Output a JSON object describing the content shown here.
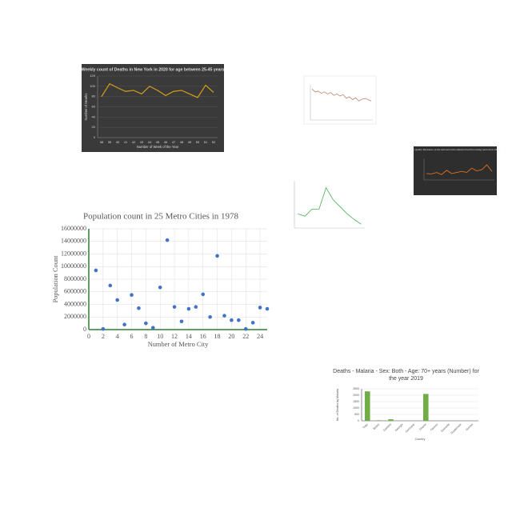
{
  "chart_data": [
    {
      "type": "line",
      "title": "Weekly count of Deaths in New York in 2020 for age between 25-45 years",
      "x_label": "Number of Week of the Year",
      "y_label": "Number of Deaths",
      "categories": [
        "38",
        "39",
        "40",
        "41",
        "42",
        "43",
        "44",
        "45",
        "46",
        "47",
        "48",
        "49",
        "50",
        "51",
        "52"
      ],
      "series": [
        {
          "name": "Deaths",
          "color": "#d4a017",
          "values": [
            80,
            105,
            97,
            90,
            92,
            85,
            100,
            92,
            82,
            90,
            92,
            85,
            78,
            102,
            88
          ]
        }
      ],
      "ylim": [
        0,
        120
      ],
      "yticks": [
        0,
        20,
        40,
        60,
        80,
        100,
        120
      ],
      "grid": true,
      "background": "#3a3a3a"
    },
    {
      "type": "line",
      "categories": [
        null,
        null,
        null,
        null,
        null,
        null,
        null,
        null,
        null,
        null,
        null,
        null,
        null,
        null,
        null,
        null,
        null,
        null,
        null,
        null
      ],
      "series": [
        {
          "name": "Values",
          "color": "#c0806a",
          "values": [
            88,
            80,
            82,
            76,
            80,
            74,
            78,
            70,
            74,
            68,
            72,
            62,
            66,
            58,
            63,
            54,
            59,
            61,
            58,
            54
          ]
        }
      ],
      "ylim": [
        0,
        100
      ],
      "grid": false,
      "background": "#ffffff"
    },
    {
      "type": "line",
      "title": "Air quality Measures on the national environmental health tracking network in 2004",
      "categories": [
        null,
        null,
        null,
        null,
        null,
        null,
        null,
        null,
        null,
        null,
        null,
        null,
        null,
        null
      ],
      "series": [
        {
          "name": "Measure",
          "color": "#e0701e",
          "values": [
            30,
            28,
            35,
            25,
            45,
            30,
            35,
            40,
            35,
            55,
            42,
            48,
            70,
            40
          ]
        }
      ],
      "ylim": [
        0,
        100
      ],
      "grid": false,
      "background": "#2e2e2e"
    },
    {
      "type": "line",
      "categories": [
        null,
        null,
        null,
        null,
        null,
        null,
        null,
        null,
        null,
        null
      ],
      "series": [
        {
          "name": "Cases",
          "color": "#4caf50",
          "values": [
            30,
            25,
            40,
            40,
            85,
            60,
            45,
            30,
            18,
            8
          ]
        }
      ],
      "ylim": [
        0,
        100
      ],
      "grid": false,
      "background": "#ffffff"
    },
    {
      "type": "scatter",
      "title": "Population count in 25 Metro Cities in 1978",
      "x_label": "Number of Metro City",
      "y_label": "Population Count",
      "x": [
        1,
        2,
        3,
        4,
        5,
        6,
        7,
        8,
        9,
        10,
        11,
        12,
        13,
        14,
        15,
        16,
        17,
        18,
        19,
        20,
        21,
        22,
        23,
        24,
        25
      ],
      "series": [
        {
          "name": "Population",
          "color": "#4472c4",
          "values": [
            9400000,
            100000,
            7000000,
            4700000,
            800000,
            5500000,
            3400000,
            1000000,
            300000,
            6700000,
            14200000,
            3600000,
            1300000,
            3300000,
            3600000,
            5600000,
            2000000,
            11700000,
            2200000,
            1500000,
            1500000,
            100000,
            1100000,
            3500000,
            3300000
          ]
        }
      ],
      "xlim": [
        0,
        25
      ],
      "xticks": [
        0,
        2,
        4,
        6,
        8,
        10,
        12,
        14,
        16,
        18,
        20,
        22,
        24
      ],
      "ylim": [
        0,
        16000000
      ],
      "yticks": [
        0,
        2000000,
        4000000,
        6000000,
        8000000,
        10000000,
        12000000,
        14000000,
        16000000
      ],
      "grid": true,
      "background": "#ffffff"
    },
    {
      "type": "bar",
      "title": "Deaths - Malaria - Sex: Both - Age: 70+ years (Number) for the year 2019",
      "x_label": "Country",
      "y_label": "No. of Deaths by Malaria",
      "categories": [
        "Togo",
        "Belize",
        "Gambia",
        "Georgia",
        "Germany",
        "Ghana",
        "Greece",
        "Grenada",
        "Guatemala",
        "Guinea"
      ],
      "series": [
        {
          "name": "Deaths",
          "color": "#70ad47",
          "values": [
            2300,
            40,
            120,
            0,
            0,
            2100,
            0,
            0,
            0,
            0
          ]
        }
      ],
      "ylim": [
        0,
        2500
      ],
      "yticks": [
        0,
        500,
        1000,
        1500,
        2000,
        2500
      ],
      "grid": true,
      "background": "#ffffff"
    }
  ]
}
